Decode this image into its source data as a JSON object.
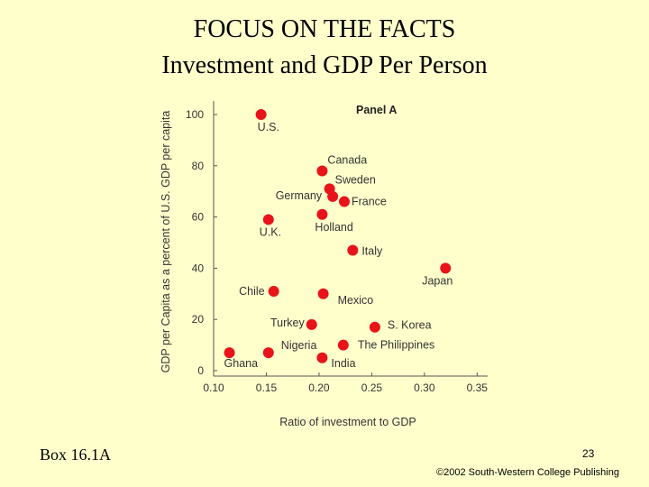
{
  "header": {
    "title_line1": "FOCUS ON THE FACTS",
    "title_line2": "Investment and GDP Per Person"
  },
  "footer": {
    "box_label": "Box 16.1A",
    "page_number": "23",
    "copyright": "©2002 South-Western College Publishing"
  },
  "colors": {
    "background": "#ffffcc",
    "point": "#e8141a",
    "axis": "#555555"
  },
  "chart_data": {
    "type": "scatter",
    "title": "Panel A",
    "xlabel": "Ratio of investment to GDP",
    "ylabel": "GDP per Capita as a percent of U.S. GDP per capita",
    "xlim": [
      0.1,
      0.36
    ],
    "ylim": [
      0,
      105
    ],
    "xticks": [
      0.1,
      0.15,
      0.2,
      0.25,
      0.3,
      0.35
    ],
    "xtick_labels": [
      "0.10",
      "0.15",
      "0.20",
      "0.25",
      "0.30",
      "0.35"
    ],
    "yticks": [
      0,
      20,
      40,
      60,
      80,
      100
    ],
    "ytick_labels": [
      "0",
      "20",
      "40",
      "60",
      "80",
      "100"
    ],
    "points": [
      {
        "label": "U.S.",
        "x": 0.145,
        "y": 100
      },
      {
        "label": "Canada",
        "x": 0.203,
        "y": 78
      },
      {
        "label": "Sweden",
        "x": 0.21,
        "y": 71
      },
      {
        "label": "Germany",
        "x": 0.213,
        "y": 68
      },
      {
        "label": "France",
        "x": 0.224,
        "y": 66
      },
      {
        "label": "Holland",
        "x": 0.203,
        "y": 61
      },
      {
        "label": "U.K.",
        "x": 0.152,
        "y": 59
      },
      {
        "label": "Italy",
        "x": 0.232,
        "y": 47
      },
      {
        "label": "Japan",
        "x": 0.32,
        "y": 40
      },
      {
        "label": "Chile",
        "x": 0.157,
        "y": 31
      },
      {
        "label": "Mexico",
        "x": 0.204,
        "y": 30
      },
      {
        "label": "Turkey",
        "x": 0.193,
        "y": 18
      },
      {
        "label": "S. Korea",
        "x": 0.253,
        "y": 17
      },
      {
        "label": "The Philippines",
        "x": 0.223,
        "y": 10
      },
      {
        "label": "Nigeria",
        "x": 0.152,
        "y": 7
      },
      {
        "label": "Ghana",
        "x": 0.115,
        "y": 7
      },
      {
        "label": "India",
        "x": 0.203,
        "y": 5
      }
    ]
  }
}
